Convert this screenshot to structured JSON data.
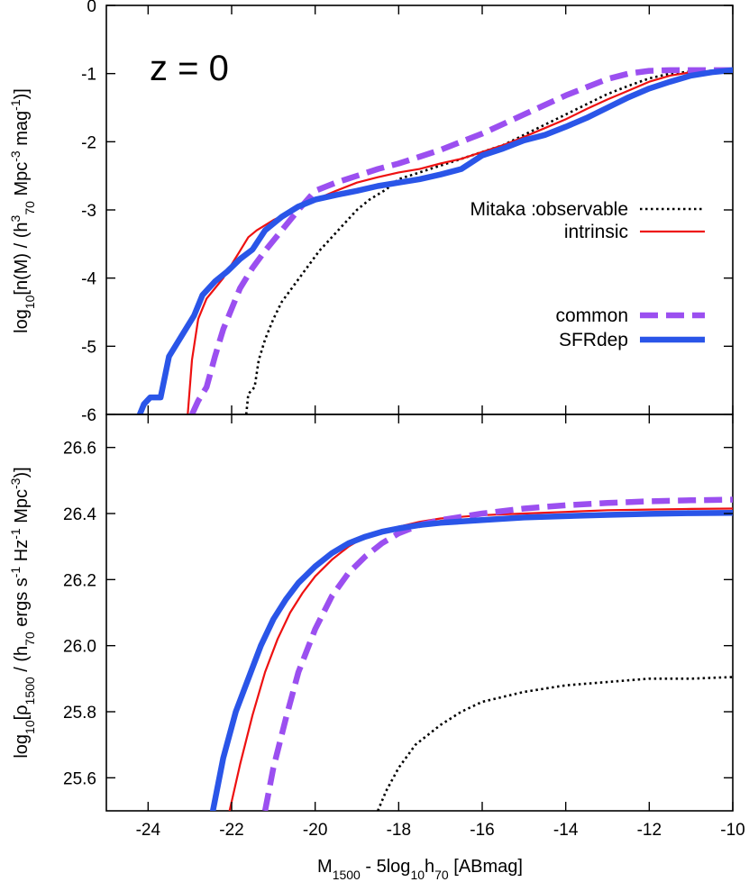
{
  "chart_data": [
    {
      "type": "line",
      "panel": "top",
      "annotation": "z = 0",
      "ylabel": "log10[n(M) / (h70^3 Mpc^-3 mag^-1)]",
      "ylabel_parts": [
        "log",
        "10",
        "[n(M) / (h",
        "3",
        "70",
        " Mpc",
        "-3",
        " mag",
        "-1",
        ")]"
      ],
      "xlim": [
        -25,
        -10
      ],
      "ylim": [
        -6,
        0
      ],
      "x_ticks": [
        -24,
        -22,
        -20,
        -18,
        -16,
        -14,
        -12,
        -10
      ],
      "y_ticks": [
        0,
        -1,
        -2,
        -3,
        -4,
        -5,
        -6
      ],
      "y_tick_labels": [
        "0",
        "-1",
        "-2",
        "-3",
        "-4",
        "-5",
        "-6"
      ],
      "legend": {
        "header": "Mitaka :",
        "placement": "right",
        "entries": [
          "observable",
          "intrinsic",
          "common",
          "SFRdep"
        ]
      },
      "series": [
        {
          "name": "observable",
          "color": "#000000",
          "style": "dotted",
          "x": [
            -21.65,
            -21.6,
            -21.45,
            -21.35,
            -21.2,
            -21.0,
            -20.8,
            -20.5,
            -20.2,
            -19.9,
            -19.6,
            -19.3,
            -19.0,
            -18.7,
            -18.3,
            -18.0,
            -17.5,
            -17.0,
            -16.5,
            -16.0,
            -15.5,
            -15.0,
            -14.5,
            -14.0,
            -13.5,
            -13.0,
            -12.5,
            -12.0,
            -11.5,
            -11.0,
            -10.5,
            -10.0
          ],
          "y": [
            -6.0,
            -5.7,
            -5.6,
            -5.2,
            -4.9,
            -4.6,
            -4.35,
            -4.1,
            -3.85,
            -3.6,
            -3.4,
            -3.2,
            -3.0,
            -2.85,
            -2.7,
            -2.55,
            -2.45,
            -2.35,
            -2.25,
            -2.15,
            -2.05,
            -1.9,
            -1.75,
            -1.6,
            -1.45,
            -1.3,
            -1.18,
            -1.07,
            -1.0,
            -0.97,
            -0.96,
            -0.95
          ]
        },
        {
          "name": "intrinsic",
          "color": "#ee1111",
          "style": "solid",
          "x": [
            -23.05,
            -22.95,
            -22.8,
            -22.6,
            -22.4,
            -22.2,
            -22.0,
            -21.8,
            -21.6,
            -21.4,
            -21.0,
            -20.5,
            -20.0,
            -19.5,
            -19.0,
            -18.5,
            -18.0,
            -17.5,
            -17.0,
            -16.5,
            -16.0,
            -15.5,
            -15.0,
            -14.5,
            -14.0,
            -13.5,
            -13.0,
            -12.5,
            -12.0,
            -11.5,
            -11.0,
            -10.5,
            -10.0
          ],
          "y": [
            -6.0,
            -5.2,
            -4.6,
            -4.3,
            -4.15,
            -4.0,
            -3.8,
            -3.6,
            -3.4,
            -3.3,
            -3.15,
            -3.0,
            -2.85,
            -2.72,
            -2.6,
            -2.52,
            -2.45,
            -2.4,
            -2.32,
            -2.25,
            -2.15,
            -2.05,
            -1.93,
            -1.8,
            -1.67,
            -1.52,
            -1.38,
            -1.25,
            -1.12,
            -1.03,
            -0.98,
            -0.96,
            -0.95
          ]
        },
        {
          "name": "common",
          "color": "#9b4ff0",
          "style": "dashed",
          "x": [
            -22.95,
            -22.8,
            -22.6,
            -22.4,
            -22.2,
            -22.0,
            -21.8,
            -21.5,
            -21.2,
            -20.8,
            -20.4,
            -20.0,
            -19.5,
            -19.0,
            -18.5,
            -18.0,
            -17.5,
            -17.0,
            -16.5,
            -16.0,
            -15.5,
            -15.0,
            -14.5,
            -14.0,
            -13.5,
            -13.0,
            -12.5,
            -12.0,
            -11.5,
            -11.0,
            -10.5,
            -10.0
          ],
          "y": [
            -6.0,
            -5.8,
            -5.6,
            -5.15,
            -4.75,
            -4.45,
            -4.15,
            -3.85,
            -3.6,
            -3.3,
            -3.0,
            -2.72,
            -2.6,
            -2.5,
            -2.4,
            -2.32,
            -2.22,
            -2.12,
            -2.0,
            -1.88,
            -1.74,
            -1.6,
            -1.46,
            -1.32,
            -1.2,
            -1.08,
            -1.0,
            -0.96,
            -0.95,
            -0.95,
            -0.95,
            -0.95
          ]
        },
        {
          "name": "SFRdep",
          "color": "#2a55e8",
          "style": "solid-thick",
          "x": [
            -24.2,
            -24.1,
            -23.95,
            -23.7,
            -23.5,
            -23.2,
            -22.9,
            -22.7,
            -22.4,
            -22.1,
            -21.8,
            -21.5,
            -21.2,
            -20.8,
            -20.4,
            -20.0,
            -19.5,
            -19.0,
            -18.5,
            -18.0,
            -17.5,
            -17.0,
            -16.5,
            -16.0,
            -15.5,
            -15.0,
            -14.5,
            -14.0,
            -13.5,
            -13.0,
            -12.5,
            -12.0,
            -11.5,
            -11.0,
            -10.5,
            -10.0
          ],
          "y": [
            -6.0,
            -5.85,
            -5.75,
            -5.75,
            -5.15,
            -4.85,
            -4.55,
            -4.25,
            -4.05,
            -3.9,
            -3.72,
            -3.58,
            -3.3,
            -3.1,
            -2.95,
            -2.85,
            -2.78,
            -2.72,
            -2.65,
            -2.6,
            -2.55,
            -2.48,
            -2.4,
            -2.2,
            -2.1,
            -1.98,
            -1.9,
            -1.78,
            -1.65,
            -1.5,
            -1.35,
            -1.22,
            -1.12,
            -1.03,
            -0.98,
            -0.95
          ]
        }
      ]
    },
    {
      "type": "line",
      "panel": "bottom",
      "xlabel": "M1500 - 5log10h70 [ABmag]",
      "xlabel_parts": [
        "M",
        "1500",
        " - 5log",
        "10",
        "h",
        "70",
        " [ABmag]"
      ],
      "ylabel": "log10[ρ1500 / (h70 ergs s^-1 Hz^-1 Mpc^-3)]",
      "ylabel_parts": [
        "log",
        "10",
        "[ρ",
        "1500",
        " / (h",
        "70",
        " ergs s",
        "-1",
        " Hz",
        "-1",
        " Mpc",
        "-3",
        ")]"
      ],
      "xlim": [
        -25,
        -10
      ],
      "ylim": [
        25.5,
        26.7
      ],
      "x_ticks": [
        -24,
        -22,
        -20,
        -18,
        -16,
        -14,
        -12,
        -10
      ],
      "x_tick_labels": [
        "-24",
        "-22",
        "-20",
        "-18",
        "-16",
        "-14",
        "-12",
        "-10"
      ],
      "y_ticks": [
        25.6,
        25.8,
        26.0,
        26.2,
        26.4,
        26.6
      ],
      "y_tick_labels": [
        "25.6",
        "25.8",
        "26.0",
        "26.2",
        "26.4",
        "26.6"
      ],
      "series": [
        {
          "name": "observable",
          "color": "#000000",
          "style": "dotted",
          "x": [
            -18.5,
            -18.3,
            -18.0,
            -17.6,
            -17.0,
            -16.5,
            -16.0,
            -15.0,
            -14.0,
            -13.0,
            -12.0,
            -11.0,
            -10.0
          ],
          "y": [
            25.5,
            25.56,
            25.63,
            25.7,
            25.76,
            25.8,
            25.83,
            25.86,
            25.88,
            25.89,
            25.9,
            25.9,
            25.905
          ]
        },
        {
          "name": "intrinsic",
          "color": "#ee1111",
          "style": "solid",
          "x": [
            -22.05,
            -21.8,
            -21.5,
            -21.2,
            -20.9,
            -20.6,
            -20.3,
            -20.0,
            -19.6,
            -19.2,
            -18.8,
            -18.4,
            -18.0,
            -17.5,
            -17.0,
            -16.0,
            -15.0,
            -14.0,
            -13.0,
            -12.0,
            -11.0,
            -10.0
          ],
          "y": [
            25.5,
            25.64,
            25.79,
            25.92,
            26.02,
            26.1,
            26.16,
            26.21,
            26.26,
            26.3,
            26.33,
            26.35,
            26.36,
            26.375,
            26.385,
            26.395,
            26.4,
            26.405,
            26.41,
            26.412,
            26.414,
            26.415
          ]
        },
        {
          "name": "common",
          "color": "#9b4ff0",
          "style": "dashed",
          "x": [
            -21.2,
            -21.0,
            -20.7,
            -20.4,
            -20.0,
            -19.6,
            -19.2,
            -18.8,
            -18.4,
            -18.0,
            -17.5,
            -17.0,
            -16.5,
            -16.0,
            -15.0,
            -14.0,
            -13.0,
            -12.0,
            -11.0,
            -10.0
          ],
          "y": [
            25.5,
            25.63,
            25.78,
            25.92,
            26.05,
            26.15,
            26.22,
            26.27,
            26.31,
            26.34,
            26.365,
            26.38,
            26.39,
            26.4,
            26.415,
            26.425,
            26.432,
            26.437,
            26.44,
            26.442
          ]
        },
        {
          "name": "SFRdep",
          "color": "#2a55e8",
          "style": "solid-thick",
          "x": [
            -22.45,
            -22.2,
            -21.9,
            -21.6,
            -21.3,
            -21.0,
            -20.7,
            -20.4,
            -20.0,
            -19.6,
            -19.2,
            -18.8,
            -18.4,
            -18.0,
            -17.5,
            -17.0,
            -16.0,
            -15.0,
            -14.0,
            -13.0,
            -12.0,
            -11.0,
            -10.0
          ],
          "y": [
            25.5,
            25.66,
            25.8,
            25.9,
            26.0,
            26.08,
            26.14,
            26.19,
            26.24,
            26.28,
            26.31,
            26.33,
            26.345,
            26.355,
            26.365,
            26.372,
            26.38,
            26.388,
            26.392,
            26.396,
            26.399,
            26.401,
            26.402
          ]
        }
      ]
    }
  ]
}
